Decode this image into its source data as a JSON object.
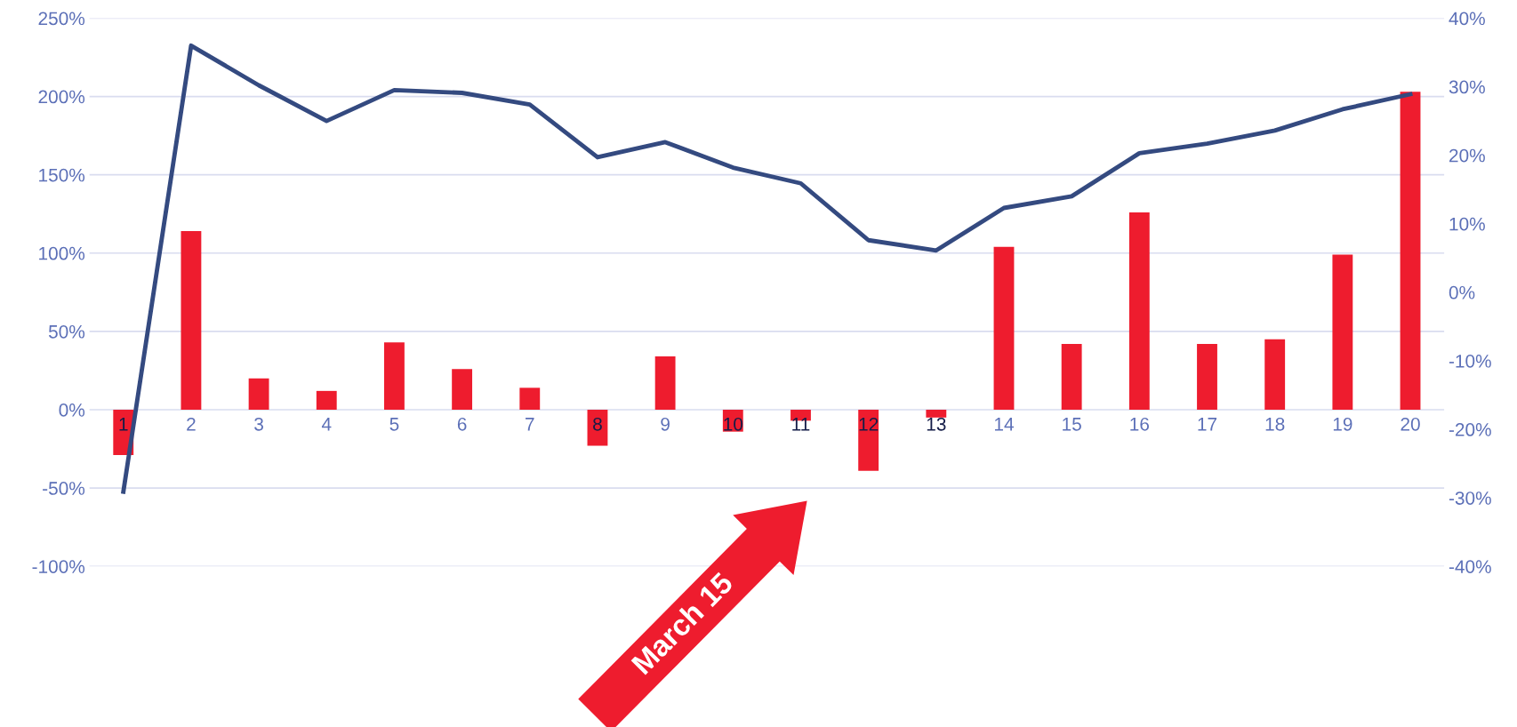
{
  "chart_data": {
    "type": "bar",
    "categories": [
      "1",
      "2",
      "3",
      "4",
      "5",
      "6",
      "7",
      "8",
      "9",
      "10",
      "11",
      "12",
      "13",
      "14",
      "15",
      "16",
      "17",
      "18",
      "19",
      "20"
    ],
    "series": [
      {
        "color": "#ee1c2e",
        "values": [
          -29,
          114,
          20,
          12,
          43,
          26,
          14,
          -23,
          34,
          -14,
          -7,
          -39,
          -5,
          104,
          42,
          126,
          42,
          45,
          99,
          203
        ]
      },
      {
        "type": "line",
        "axis": "y2",
        "color": "#344a80",
        "values": [
          -29.1,
          36.0,
          30.2,
          25.0,
          29.5,
          29.1,
          27.4,
          19.7,
          21.9,
          18.2,
          15.9,
          7.6,
          6.1,
          12.3,
          14.0,
          20.3,
          21.7,
          23.6,
          26.7,
          28.9
        ]
      }
    ],
    "ylim": [
      -100,
      250
    ],
    "yticks": [
      {
        "value": -100,
        "label": "-100%"
      },
      {
        "value": -50,
        "label": "-50%"
      },
      {
        "value": 0,
        "label": "0%"
      },
      {
        "value": 50,
        "label": "50%"
      },
      {
        "value": 100,
        "label": "100%"
      },
      {
        "value": 150,
        "label": "150%"
      },
      {
        "value": 200,
        "label": "200%"
      },
      {
        "value": 250,
        "label": "250%"
      }
    ],
    "y2lim": [
      -40,
      40
    ],
    "y2ticks": [
      {
        "value": -40,
        "label": "-40%"
      },
      {
        "value": -30,
        "label": "-30%"
      },
      {
        "value": -20,
        "label": "-20%"
      },
      {
        "value": -10,
        "label": "-10%"
      },
      {
        "value": 0,
        "label": "0%"
      },
      {
        "value": 10,
        "label": "10%"
      },
      {
        "value": 20,
        "label": "20%"
      },
      {
        "value": 30,
        "label": "30%"
      },
      {
        "value": 40,
        "label": "40%"
      }
    ],
    "grid": "y",
    "annotations": [
      "March 15"
    ]
  }
}
